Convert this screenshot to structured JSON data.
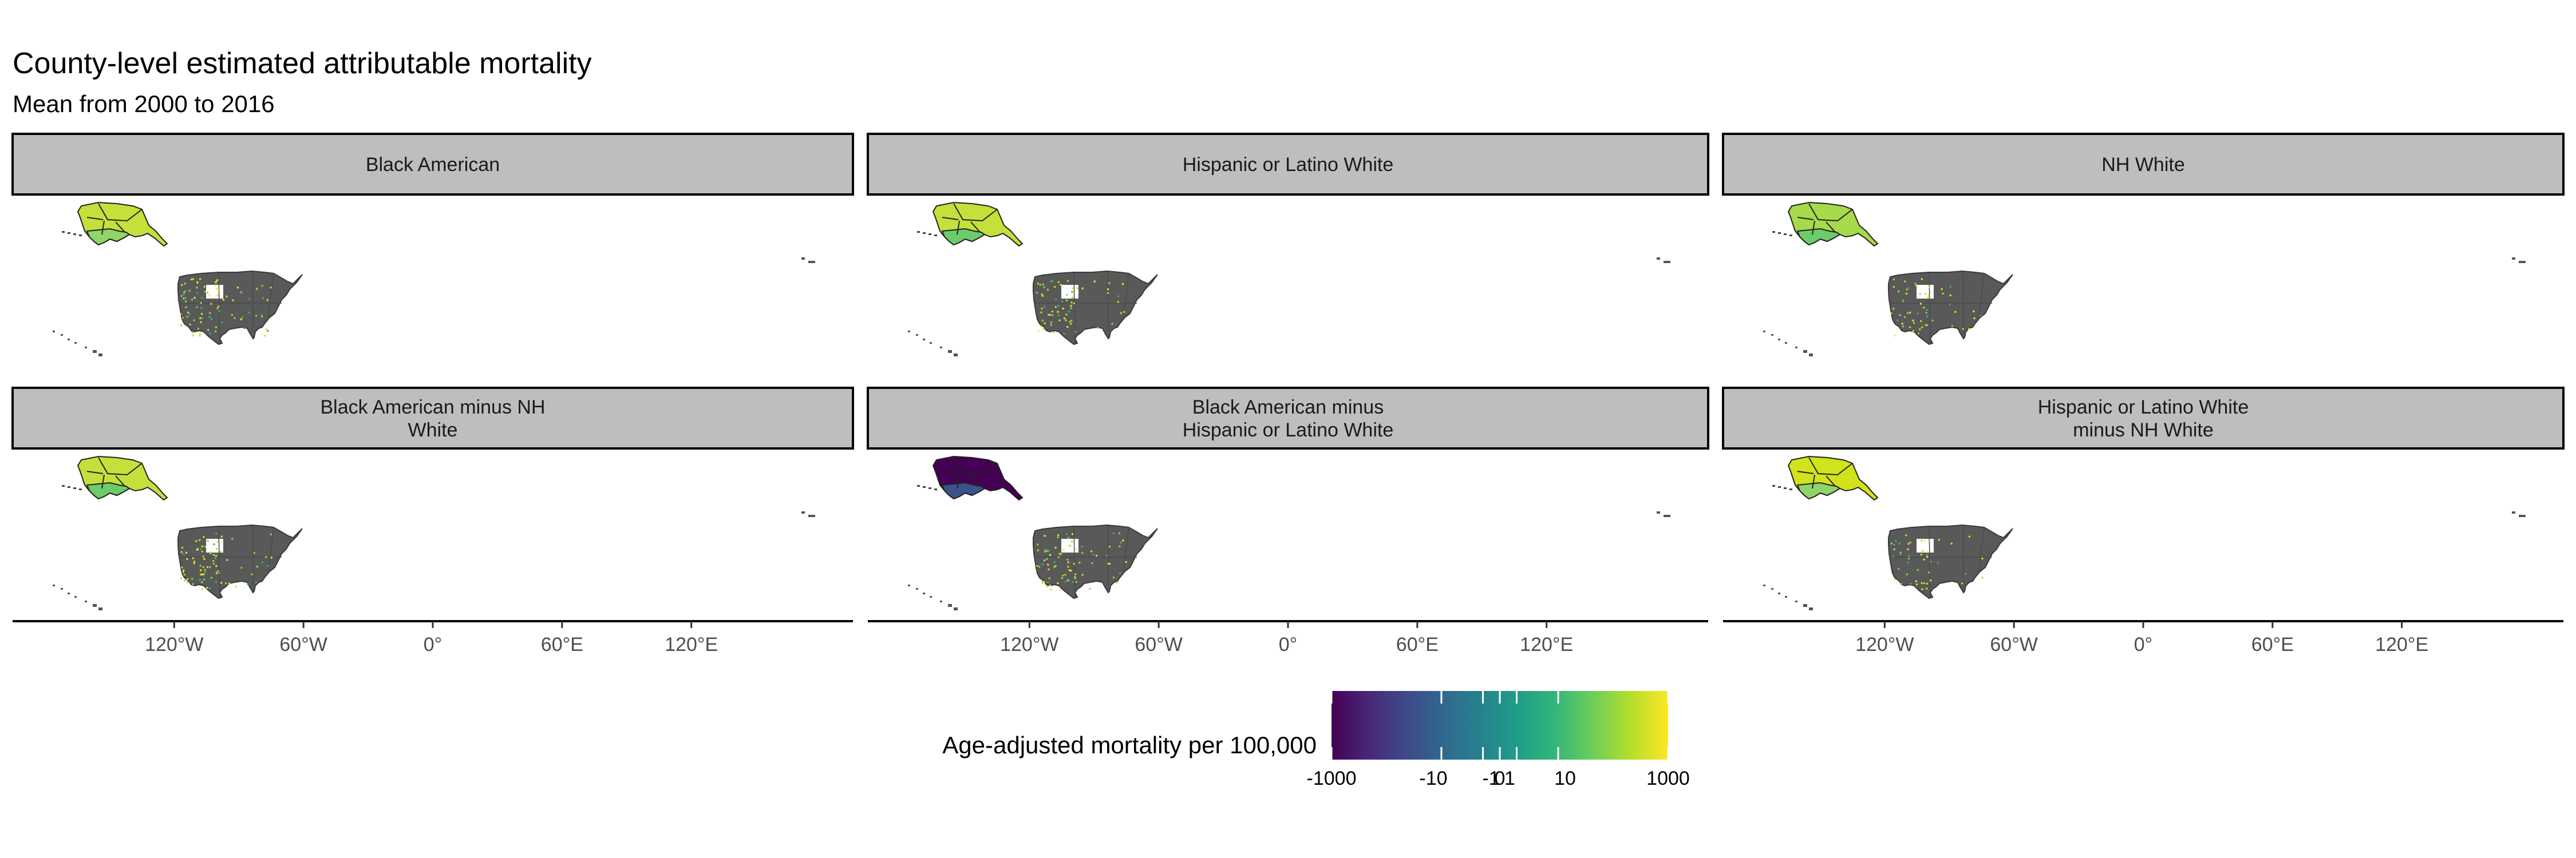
{
  "title": "County-level estimated attributable mortality",
  "subtitle": "Mean from 2000 to 2016",
  "panels": [
    {
      "lines": [
        "Black American"
      ],
      "alaska": "#c4e03b",
      "alaska_south": "#8fd56a",
      "dot_density": 0.55
    },
    {
      "lines": [
        "Hispanic or Latino White"
      ],
      "alaska": "#c4e03b",
      "alaska_south": "#6ecb6a",
      "dot_density": 0.45
    },
    {
      "lines": [
        "NH White"
      ],
      "alaska": "#a6da4b",
      "alaska_south": "#6ecb6a",
      "dot_density": 0.35
    },
    {
      "lines": [
        "Black American minus NH",
        "White"
      ],
      "alaska": "#c4e03b",
      "alaska_south": "#6ecb6a",
      "dot_density": 0.55
    },
    {
      "lines": [
        "Black American minus",
        "Hispanic or Latino White"
      ],
      "alaska": "#440154",
      "alaska_south": "#3b528b",
      "dot_density": 0.5
    },
    {
      "lines": [
        "Hispanic or Latino White",
        "minus NH White"
      ],
      "alaska": "#d2e21b",
      "alaska_south": "#8fd56a",
      "dot_density": 0.3
    }
  ],
  "x_axis": {
    "ticks": [
      {
        "value": -120,
        "label": "120°W"
      },
      {
        "value": -60,
        "label": "60°W"
      },
      {
        "value": 0,
        "label": "0°"
      },
      {
        "value": 60,
        "label": "60°E"
      },
      {
        "value": 120,
        "label": "120°E"
      }
    ],
    "xlim": [
      -195,
      195
    ]
  },
  "legend": {
    "title": "Age-adjusted mortality per 100,000",
    "ticks": [
      {
        "value": -1000,
        "label": "-1000"
      },
      {
        "value": -10,
        "label": "-10"
      },
      {
        "value": -1,
        "label": "-1"
      },
      {
        "value": 0,
        "label": "0"
      },
      {
        "value": 1,
        "label": "1"
      },
      {
        "value": 10,
        "label": "10"
      },
      {
        "value": 1000,
        "label": "1000"
      }
    ],
    "colors": [
      "#440154",
      "#482878",
      "#3e4989",
      "#31688e",
      "#26828e",
      "#1f9e89",
      "#35b779",
      "#6ece58",
      "#b5de2b",
      "#fde725"
    ]
  },
  "land_color": "#595959",
  "strip_fill": "#bebebe"
}
